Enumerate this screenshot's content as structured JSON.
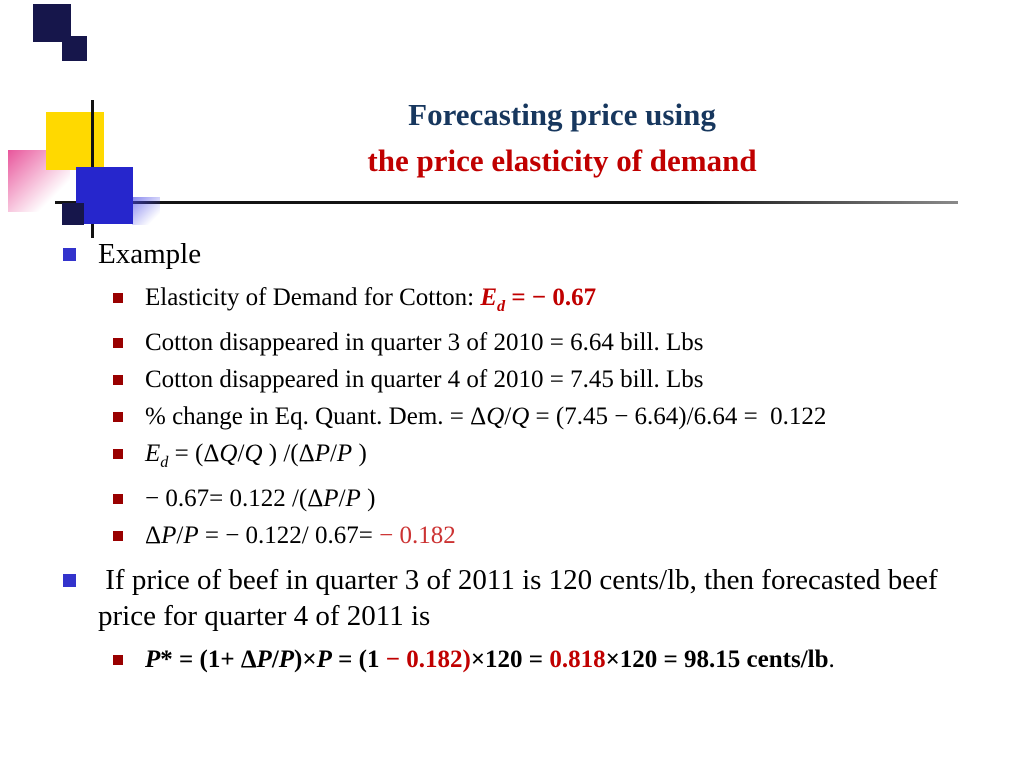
{
  "slide": {
    "title": {
      "line1": "Forecasting price using",
      "line2": "the price elasticity of demand"
    },
    "colors": {
      "title1": "#17375E",
      "title2": "#C00000",
      "red": "#C00000",
      "softred": "#CC3333",
      "bullet1": "#3333CC",
      "bullet2": "#990000",
      "navy": "#16164B",
      "yellow": "#FFD900",
      "blue": "#2626CC",
      "pink": "#E8559B"
    },
    "bullets": [
      {
        "level": 1,
        "runs": [
          {
            "t": "Example"
          }
        ]
      },
      {
        "level": 2,
        "runs": [
          {
            "t": "Elasticity of Demand for Cotton: "
          },
          {
            "t": "E",
            "b": true,
            "i": true,
            "c": "red"
          },
          {
            "t": "d",
            "b": true,
            "i": true,
            "c": "red",
            "sub": true
          },
          {
            "t": " = − 0.67",
            "b": true,
            "c": "red"
          }
        ]
      },
      {
        "level": 2,
        "runs": [
          {
            "t": "Cotton disappeared in quarter 3 of 2010 = 6.64 bill. Lbs"
          }
        ]
      },
      {
        "level": 2,
        "runs": [
          {
            "t": "Cotton disappeared in quarter 4 of 2010 = 7.45 bill. Lbs"
          }
        ]
      },
      {
        "level": 2,
        "runs": [
          {
            "t": "% change in Eq. Quant. Dem. = Δ"
          },
          {
            "t": "Q",
            "i": true
          },
          {
            "t": "/"
          },
          {
            "t": "Q",
            "i": true
          },
          {
            "t": " = (7.45 − 6.64)/6.64 =  0.122"
          }
        ]
      },
      {
        "level": 2,
        "runs": [
          {
            "t": "E",
            "i": true
          },
          {
            "t": "d",
            "i": true,
            "sub": true
          },
          {
            "t": " = (Δ"
          },
          {
            "t": "Q",
            "i": true
          },
          {
            "t": "/"
          },
          {
            "t": "Q",
            "i": true
          },
          {
            "t": " ) /(Δ"
          },
          {
            "t": "P",
            "i": true
          },
          {
            "t": "/"
          },
          {
            "t": "P",
            "i": true
          },
          {
            "t": " )"
          }
        ]
      },
      {
        "level": 2,
        "runs": [
          {
            "t": "− 0.67= 0.122 /(Δ"
          },
          {
            "t": "P",
            "i": true
          },
          {
            "t": "/"
          },
          {
            "t": "P",
            "i": true
          },
          {
            "t": " )"
          }
        ]
      },
      {
        "level": 2,
        "runs": [
          {
            "t": "Δ"
          },
          {
            "t": "P",
            "i": true
          },
          {
            "t": "/"
          },
          {
            "t": "P",
            "i": true
          },
          {
            "t": " = − 0.122/ 0.67= "
          },
          {
            "t": "− 0.182",
            "c": "softred"
          }
        ]
      },
      {
        "level": 1,
        "runs": [
          {
            "t": " If price of beef in quarter 3 of 2011 is 120 cents/lb, then forecasted beef price for quarter 4 of 2011 is"
          }
        ]
      },
      {
        "level": 2,
        "runs": [
          {
            "t": "P",
            "b": true,
            "i": true
          },
          {
            "t": "* = (1+ Δ",
            "b": true
          },
          {
            "t": "P",
            "b": true,
            "i": true
          },
          {
            "t": "/",
            "b": true
          },
          {
            "t": "P",
            "b": true,
            "i": true
          },
          {
            "t": ")×",
            "b": true
          },
          {
            "t": "P",
            "b": true,
            "i": true
          },
          {
            "t": " = (1 ",
            "b": true
          },
          {
            "t": "− 0.182)",
            "b": true,
            "c": "red"
          },
          {
            "t": "×120 = ",
            "b": true
          },
          {
            "t": "0.818",
            "b": true,
            "c": "red"
          },
          {
            "t": "×120 = 98.15 cents/lb",
            "b": true
          },
          {
            "t": "."
          }
        ]
      }
    ]
  }
}
